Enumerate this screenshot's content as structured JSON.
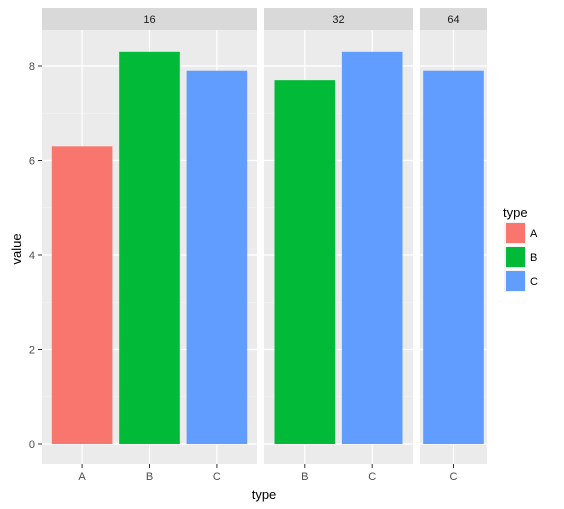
{
  "chart_data": {
    "type": "bar",
    "xlabel": "type",
    "ylabel": "value",
    "ylim": [
      0,
      8.7
    ],
    "yticks": [
      0,
      2,
      4,
      6,
      8
    ],
    "grid": true,
    "legend": {
      "title": "type",
      "position": "right",
      "entries": [
        {
          "label": "A",
          "color": "#F8766D"
        },
        {
          "label": "B",
          "color": "#00BA38"
        },
        {
          "label": "C",
          "color": "#619CFF"
        }
      ]
    },
    "facets": [
      {
        "label": "16",
        "categories": [
          "A",
          "B",
          "C"
        ],
        "values": [
          6.3,
          8.3,
          7.9
        ]
      },
      {
        "label": "32",
        "categories": [
          "B",
          "C"
        ],
        "values": [
          7.7,
          8.3
        ]
      },
      {
        "label": "64",
        "categories": [
          "C"
        ],
        "values": [
          7.9
        ]
      }
    ]
  }
}
